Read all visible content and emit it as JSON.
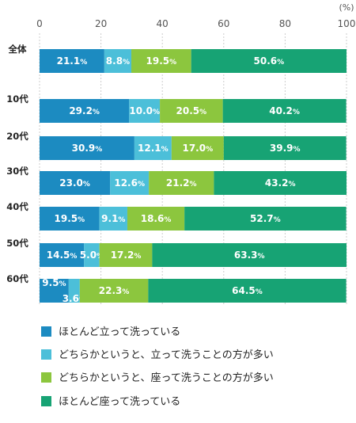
{
  "chart_data": {
    "type": "bar",
    "orientation": "horizontal",
    "stacked": true,
    "unit": "(%)",
    "xlim": [
      0,
      100
    ],
    "xticks": [
      0,
      20,
      40,
      60,
      80,
      100
    ],
    "categories": [
      "全体",
      "10代",
      "20代",
      "30代",
      "40代",
      "50代",
      "60代"
    ],
    "series": [
      {
        "name": "ほとんど立って洗っている",
        "color": "#1c8bc1",
        "values": [
          21.1,
          29.2,
          30.9,
          23.0,
          19.5,
          14.5,
          9.5
        ]
      },
      {
        "name": "どちらかというと、立って洗うことの方が多い",
        "color": "#4cbfd9",
        "values": [
          8.8,
          10.0,
          12.1,
          12.6,
          9.1,
          5.0,
          3.6
        ]
      },
      {
        "name": "どちらかというと、座って洗うことの方が多い",
        "color": "#8cc63e",
        "values": [
          19.5,
          20.5,
          17.0,
          21.2,
          18.6,
          17.2,
          22.3
        ]
      },
      {
        "name": "ほとんど座って洗っている",
        "color": "#17a374",
        "values": [
          50.6,
          40.2,
          39.9,
          43.2,
          52.7,
          63.3,
          64.5
        ]
      }
    ],
    "grid": true,
    "legend": "bottom"
  }
}
